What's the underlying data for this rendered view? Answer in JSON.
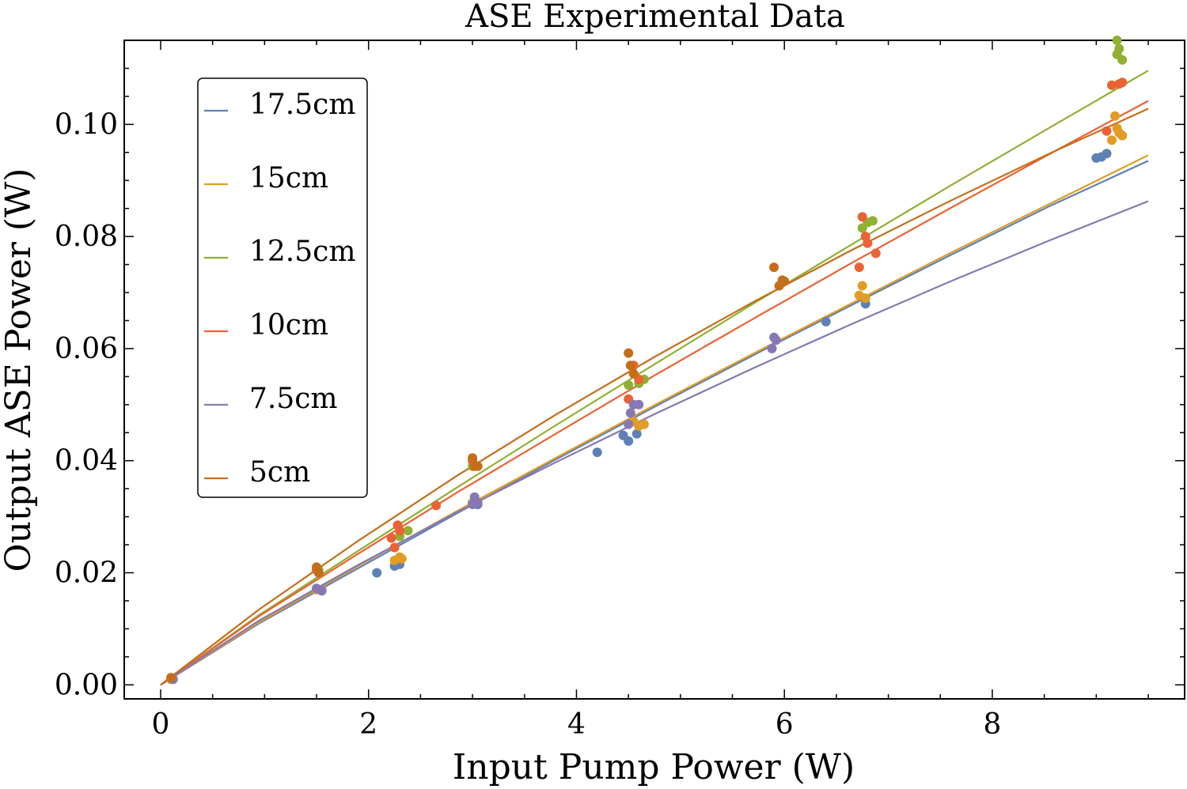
{
  "chart_data": {
    "type": "scatter",
    "title": "ASE Experimental Data",
    "xlabel": "Input Pump Power (W)",
    "ylabel": "Output ASE Power (W)",
    "xlim": [
      -0.35,
      9.85
    ],
    "ylim": [
      -0.0025,
      0.115
    ],
    "xticks": [
      "0",
      "2",
      "4",
      "6",
      "8"
    ],
    "xtick_values": [
      0,
      2,
      4,
      6,
      8
    ],
    "yticks": [
      "0.00",
      "0.02",
      "0.04",
      "0.06",
      "0.08",
      "0.10"
    ],
    "ytick_values": [
      0,
      0.02,
      0.04,
      0.06,
      0.08,
      0.1
    ],
    "legend_position": "top-left",
    "fit_xmax": 9.5,
    "series": [
      {
        "name": "17.5cm",
        "color": "#5e81b5",
        "fit": [
          0.0,
          0.011,
          0.0208,
          0.0306,
          0.0402,
          0.0496,
          0.0588,
          0.0678,
          0.0767,
          0.0854,
          0.0935
        ],
        "points": [
          [
            0.12,
            0.001
          ],
          [
            0.1,
            0.0012
          ],
          [
            1.5,
            0.017
          ],
          [
            1.55,
            0.0168
          ],
          [
            2.08,
            0.02
          ],
          [
            2.25,
            0.0212
          ],
          [
            2.3,
            0.0215
          ],
          [
            3.0,
            0.0325
          ],
          [
            3.05,
            0.0322
          ],
          [
            4.2,
            0.0415
          ],
          [
            4.45,
            0.0445
          ],
          [
            4.5,
            0.0435
          ],
          [
            4.58,
            0.0448
          ],
          [
            6.4,
            0.0648
          ],
          [
            6.78,
            0.068
          ],
          [
            9.0,
            0.094
          ],
          [
            9.05,
            0.0942
          ],
          [
            9.1,
            0.0948
          ]
        ]
      },
      {
        "name": "15cm",
        "color": "#e19c24",
        "fit": [
          0.0,
          0.0112,
          0.0212,
          0.031,
          0.0405,
          0.0499,
          0.0591,
          0.0681,
          0.0771,
          0.0858,
          0.0945
        ],
        "points": [
          [
            0.1,
            0.001
          ],
          [
            1.5,
            0.017
          ],
          [
            2.25,
            0.0222
          ],
          [
            2.3,
            0.0228
          ],
          [
            2.32,
            0.0225
          ],
          [
            3.0,
            0.0325
          ],
          [
            4.5,
            0.0465
          ],
          [
            4.55,
            0.047
          ],
          [
            4.6,
            0.0462
          ],
          [
            4.65,
            0.0465
          ],
          [
            6.72,
            0.0695
          ],
          [
            6.75,
            0.0712
          ],
          [
            6.78,
            0.069
          ],
          [
            9.15,
            0.0972
          ],
          [
            9.18,
            0.1015
          ],
          [
            9.2,
            0.0993
          ],
          [
            9.22,
            0.0985
          ],
          [
            9.25,
            0.098
          ]
        ]
      },
      {
        "name": "12.5cm",
        "color": "#8fb032",
        "fit": [
          0.0,
          0.0125,
          0.0239,
          0.0352,
          0.0463,
          0.0572,
          0.068,
          0.0786,
          0.0891,
          0.0994,
          0.1096
        ],
        "points": [
          [
            0.1,
            0.0012
          ],
          [
            1.52,
            0.0205
          ],
          [
            2.3,
            0.0265
          ],
          [
            2.38,
            0.0275
          ],
          [
            3.0,
            0.039
          ],
          [
            4.5,
            0.0535
          ],
          [
            4.6,
            0.0538
          ],
          [
            4.65,
            0.0545
          ],
          [
            6.75,
            0.0815
          ],
          [
            6.8,
            0.0825
          ],
          [
            6.85,
            0.0828
          ],
          [
            9.2,
            0.1125
          ],
          [
            9.22,
            0.1135
          ],
          [
            9.25,
            0.1115
          ],
          [
            9.2,
            0.115
          ]
        ]
      },
      {
        "name": "10cm",
        "color": "#eb6235",
        "fit": [
          0.0,
          0.0123,
          0.0234,
          0.0343,
          0.0448,
          0.0552,
          0.0653,
          0.0753,
          0.0851,
          0.0947,
          0.1042
        ],
        "points": [
          [
            0.1,
            0.0012
          ],
          [
            1.5,
            0.0205
          ],
          [
            2.22,
            0.0262
          ],
          [
            2.25,
            0.0245
          ],
          [
            2.28,
            0.0285
          ],
          [
            2.3,
            0.0275
          ],
          [
            2.65,
            0.032
          ],
          [
            3.0,
            0.04
          ],
          [
            4.5,
            0.051
          ],
          [
            4.55,
            0.057
          ],
          [
            4.6,
            0.0545
          ],
          [
            6.72,
            0.0745
          ],
          [
            6.75,
            0.0835
          ],
          [
            6.78,
            0.08
          ],
          [
            6.8,
            0.0788
          ],
          [
            6.88,
            0.077
          ],
          [
            9.1,
            0.0988
          ],
          [
            9.15,
            0.107
          ],
          [
            9.22,
            0.1072
          ],
          [
            9.25,
            0.1075
          ]
        ]
      },
      {
        "name": "7.5cm",
        "color": "#8778b3",
        "fit": [
          0.0,
          0.0115,
          0.0214,
          0.0308,
          0.0397,
          0.0483,
          0.0565,
          0.0644,
          0.072,
          0.0793,
          0.0863
        ],
        "points": [
          [
            0.12,
            0.001
          ],
          [
            1.5,
            0.0172
          ],
          [
            1.55,
            0.0168
          ],
          [
            3.0,
            0.0322
          ],
          [
            3.02,
            0.0335
          ],
          [
            3.05,
            0.0325
          ],
          [
            4.5,
            0.0465
          ],
          [
            4.52,
            0.0485
          ],
          [
            4.55,
            0.05
          ],
          [
            4.6,
            0.05
          ],
          [
            5.88,
            0.06
          ],
          [
            5.9,
            0.062
          ],
          [
            5.92,
            0.0615
          ]
        ]
      },
      {
        "name": "5cm",
        "color": "#c56e1a",
        "fit": [
          0.0,
          0.0135,
          0.0257,
          0.0373,
          0.0482,
          0.0585,
          0.0683,
          0.0776,
          0.0864,
          0.0948,
          0.1028
        ],
        "points": [
          [
            0.1,
            0.0013
          ],
          [
            1.5,
            0.021
          ],
          [
            1.52,
            0.02
          ],
          [
            3.0,
            0.0405
          ],
          [
            3.02,
            0.039
          ],
          [
            3.05,
            0.039
          ],
          [
            4.5,
            0.0592
          ],
          [
            4.52,
            0.057
          ],
          [
            4.55,
            0.0555
          ],
          [
            5.9,
            0.0745
          ],
          [
            5.95,
            0.0712
          ],
          [
            5.98,
            0.0722
          ],
          [
            6.0,
            0.072
          ]
        ]
      }
    ]
  }
}
